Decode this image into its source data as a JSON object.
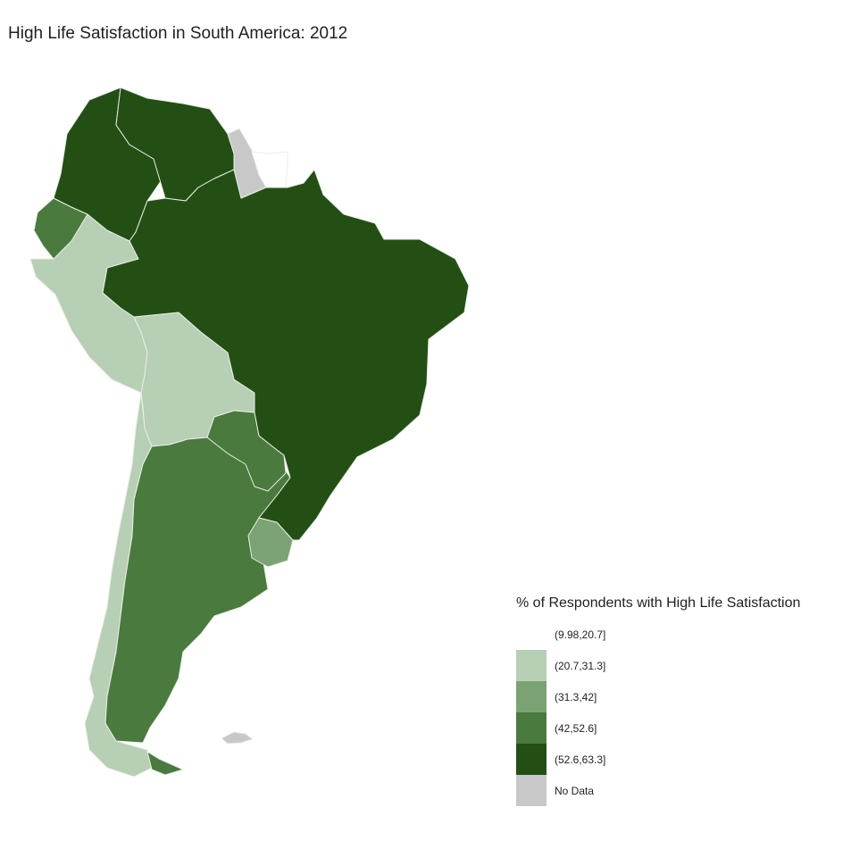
{
  "title": "High Life Satisfaction in South America: 2012",
  "legend": {
    "title": "% of Respondents with High Life Satisfaction",
    "items": [
      {
        "label": "(9.98,20.7]",
        "color": "#ffffff"
      },
      {
        "label": "(20.7,31.3]",
        "color": "#b7cfb4"
      },
      {
        "label": "(31.3,42]",
        "color": "#7ba373"
      },
      {
        "label": "(42,52.6]",
        "color": "#4a7a3e"
      },
      {
        "label": "(52.6,63.3]",
        "color": "#234f15"
      },
      {
        "label": "No Data",
        "color": "#c8c8c8"
      }
    ]
  },
  "countries": [
    {
      "name": "Colombia",
      "bin": "(52.6,63.3]"
    },
    {
      "name": "Venezuela",
      "bin": "(52.6,63.3]"
    },
    {
      "name": "Brazil",
      "bin": "(52.6,63.3]"
    },
    {
      "name": "Guyana",
      "bin": "No Data"
    },
    {
      "name": "Suriname",
      "bin": "(9.98,20.7]"
    },
    {
      "name": "Ecuador",
      "bin": "(42,52.6]"
    },
    {
      "name": "Peru",
      "bin": "(20.7,31.3]"
    },
    {
      "name": "Bolivia",
      "bin": "(20.7,31.3]"
    },
    {
      "name": "Chile",
      "bin": "(20.7,31.3]"
    },
    {
      "name": "Paraguay",
      "bin": "(42,52.6]"
    },
    {
      "name": "Argentina",
      "bin": "(42,52.6]"
    },
    {
      "name": "Uruguay",
      "bin": "(31.3,42]"
    },
    {
      "name": "Falkland Islands",
      "bin": "No Data"
    }
  ]
}
